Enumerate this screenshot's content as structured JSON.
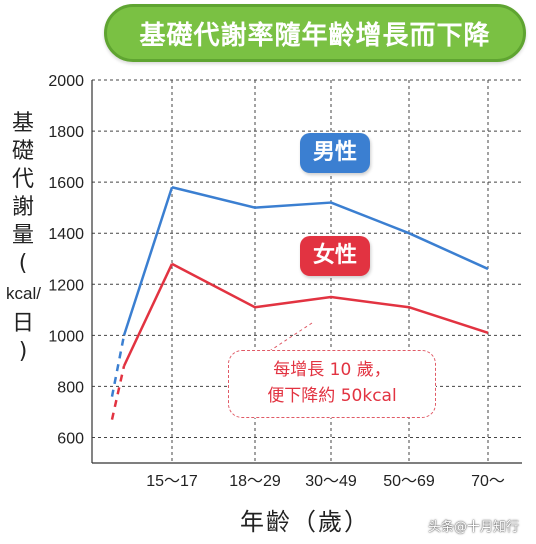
{
  "title": "基礎代謝率隨年齡增長而下降",
  "ylabel_chars": [
    "基",
    "礎",
    "代",
    "謝",
    "量"
  ],
  "ylabel_open": "(",
  "ylabel_unit": "kcal/",
  "ylabel_unit2": "日",
  "ylabel_close": ")",
  "xlabel": "年齡（歲）",
  "legend": {
    "male": "男性",
    "female": "女性"
  },
  "annotation": {
    "line1": "每增長 10 歲，",
    "line2": "便下降約 50kcal"
  },
  "watermark": "头条@十月知行",
  "colors": {
    "male": "#3b7fd1",
    "female": "#e23341",
    "banner": "#7ac143"
  },
  "chart_data": {
    "type": "line",
    "categories": [
      "15～17",
      "18～29",
      "30～49",
      "50～69",
      "70～"
    ],
    "series": [
      {
        "name": "男性",
        "values": [
          1580,
          1500,
          1520,
          1400,
          1260
        ],
        "lead_in": [
          [
            760,
            1000
          ],
          [
            1000,
            1580
          ]
        ]
      },
      {
        "name": "女性",
        "values": [
          1280,
          1110,
          1150,
          1110,
          1010
        ],
        "lead_in": [
          [
            670,
            880
          ],
          [
            880,
            1280
          ]
        ]
      }
    ],
    "yticks": [
      600,
      800,
      1000,
      1200,
      1400,
      1600,
      1800,
      2000
    ],
    "ylim": [
      500,
      2000
    ],
    "grid": true,
    "xlabel": "年齡（歲）",
    "ylabel": "基礎代謝量（kcal/日）"
  }
}
